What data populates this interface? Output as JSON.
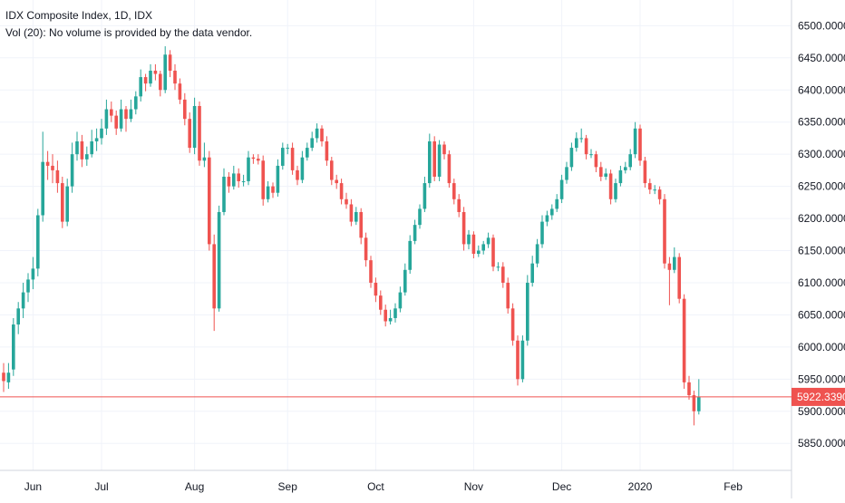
{
  "legend": {
    "title": "IDX Composite Index, 1D, IDX",
    "volume_note": "Vol (20): No volume is provided by the data vendor."
  },
  "colors": {
    "up": "#26a69a",
    "down": "#ef5350",
    "grid": "#f0f3fa",
    "axis_text": "#131722",
    "price_line": "#ef5350",
    "price_label_bg": "#ef5350",
    "price_label_text": "#ffffff",
    "background": "#ffffff"
  },
  "chart_data": {
    "type": "candlestick",
    "y_axis_side": "right",
    "ylim": [
      5808,
      6540
    ],
    "x_range": [
      0,
      154
    ],
    "grid": true,
    "y_ticks": [
      "5850.0000",
      "5900.0000",
      "5950.0000",
      "6000.0000",
      "6050.0000",
      "6100.0000",
      "6150.0000",
      "6200.0000",
      "6250.0000",
      "6300.0000",
      "6350.0000",
      "6400.0000",
      "6450.0000",
      "6500.0000"
    ],
    "x_ticks": [
      {
        "label": "Jun",
        "index": 6
      },
      {
        "label": "Jul",
        "index": 20
      },
      {
        "label": "Aug",
        "index": 39
      },
      {
        "label": "Sep",
        "index": 58
      },
      {
        "label": "Oct",
        "index": 76
      },
      {
        "label": "Nov",
        "index": 96
      },
      {
        "label": "Dec",
        "index": 114
      },
      {
        "label": "2020",
        "index": 130
      },
      {
        "label": "Feb",
        "index": 149
      }
    ],
    "last_price": {
      "value": 5922.339,
      "label": "5922.3390"
    },
    "closes": [
      5947,
      5960,
      6035,
      6060,
      6085,
      6105,
      6122,
      6205,
      6288,
      6282,
      6275,
      6255,
      6195,
      6250,
      6300,
      6320,
      6292,
      6300,
      6320,
      6325,
      6340,
      6370,
      6360,
      6340,
      6370,
      6355,
      6370,
      6390,
      6420,
      6410,
      6430,
      6425,
      6400,
      6455,
      6430,
      6410,
      6385,
      6355,
      6310,
      6375,
      6290,
      6295,
      6160,
      6060,
      6210,
      6265,
      6250,
      6270,
      6258,
      6258,
      6295,
      6293,
      6290,
      6230,
      6250,
      6240,
      6282,
      6310,
      6310,
      6275,
      6260,
      6295,
      6310,
      6325,
      6340,
      6320,
      6290,
      6260,
      6255,
      6230,
      6222,
      6195,
      6210,
      6170,
      6135,
      6100,
      6080,
      6058,
      6040,
      6045,
      6060,
      6085,
      6120,
      6165,
      6190,
      6215,
      6255,
      6320,
      6265,
      6315,
      6300,
      6255,
      6230,
      6210,
      6160,
      6175,
      6145,
      6150,
      6160,
      6170,
      6125,
      6125,
      6100,
      6060,
      6010,
      5950,
      6010,
      6100,
      6130,
      6160,
      6195,
      6205,
      6215,
      6230,
      6260,
      6280,
      6310,
      6325,
      6325,
      6300,
      6300,
      6280,
      6265,
      6270,
      6230,
      6255,
      6275,
      6280,
      6300,
      6340,
      6290,
      6255,
      6245,
      6245,
      6230,
      6130,
      6120,
      6140,
      6075,
      5945,
      5925,
      5900,
      5922
    ],
    "candles": [
      {
        "o": 5960,
        "h": 5975,
        "l": 5930,
        "c": 5947
      },
      {
        "o": 5945,
        "h": 5975,
        "l": 5935,
        "c": 5960
      },
      {
        "o": 5965,
        "h": 6045,
        "l": 5955,
        "c": 6035
      },
      {
        "o": 6035,
        "h": 6070,
        "l": 6020,
        "c": 6060
      },
      {
        "o": 6060,
        "h": 6100,
        "l": 6045,
        "c": 6085
      },
      {
        "o": 6085,
        "h": 6115,
        "l": 6070,
        "c": 6105
      },
      {
        "o": 6105,
        "h": 6140,
        "l": 6090,
        "c": 6122
      },
      {
        "o": 6122,
        "h": 6215,
        "l": 6110,
        "c": 6205
      },
      {
        "o": 6205,
        "h": 6335,
        "l": 6195,
        "c": 6288
      },
      {
        "o": 6288,
        "h": 6305,
        "l": 6260,
        "c": 6282
      },
      {
        "o": 6282,
        "h": 6300,
        "l": 6255,
        "c": 6275
      },
      {
        "o": 6275,
        "h": 6290,
        "l": 6240,
        "c": 6255
      },
      {
        "o": 6255,
        "h": 6265,
        "l": 6185,
        "c": 6195
      },
      {
        "o": 6195,
        "h": 6262,
        "l": 6188,
        "c": 6250
      },
      {
        "o": 6250,
        "h": 6318,
        "l": 6240,
        "c": 6300
      },
      {
        "o": 6300,
        "h": 6335,
        "l": 6290,
        "c": 6320
      },
      {
        "o": 6320,
        "h": 6330,
        "l": 6280,
        "c": 6292
      },
      {
        "o": 6292,
        "h": 6312,
        "l": 6282,
        "c": 6300
      },
      {
        "o": 6300,
        "h": 6338,
        "l": 6295,
        "c": 6320
      },
      {
        "o": 6320,
        "h": 6340,
        "l": 6305,
        "c": 6325
      },
      {
        "o": 6325,
        "h": 6355,
        "l": 6315,
        "c": 6340
      },
      {
        "o": 6340,
        "h": 6385,
        "l": 6330,
        "c": 6370
      },
      {
        "o": 6370,
        "h": 6382,
        "l": 6350,
        "c": 6360
      },
      {
        "o": 6360,
        "h": 6368,
        "l": 6330,
        "c": 6340
      },
      {
        "o": 6340,
        "h": 6385,
        "l": 6335,
        "c": 6370
      },
      {
        "o": 6370,
        "h": 6375,
        "l": 6335,
        "c": 6355
      },
      {
        "o": 6355,
        "h": 6385,
        "l": 6350,
        "c": 6370
      },
      {
        "o": 6370,
        "h": 6398,
        "l": 6362,
        "c": 6390
      },
      {
        "o": 6390,
        "h": 6432,
        "l": 6382,
        "c": 6420
      },
      {
        "o": 6420,
        "h": 6425,
        "l": 6398,
        "c": 6410
      },
      {
        "o": 6410,
        "h": 6440,
        "l": 6405,
        "c": 6430
      },
      {
        "o": 6430,
        "h": 6440,
        "l": 6415,
        "c": 6425
      },
      {
        "o": 6425,
        "h": 6430,
        "l": 6390,
        "c": 6400
      },
      {
        "o": 6400,
        "h": 6468,
        "l": 6395,
        "c": 6455
      },
      {
        "o": 6455,
        "h": 6462,
        "l": 6420,
        "c": 6430
      },
      {
        "o": 6430,
        "h": 6440,
        "l": 6400,
        "c": 6410
      },
      {
        "o": 6410,
        "h": 6418,
        "l": 6378,
        "c": 6385
      },
      {
        "o": 6385,
        "h": 6395,
        "l": 6345,
        "c": 6355
      },
      {
        "o": 6355,
        "h": 6365,
        "l": 6302,
        "c": 6310
      },
      {
        "o": 6310,
        "h": 6388,
        "l": 6300,
        "c": 6375
      },
      {
        "o": 6375,
        "h": 6382,
        "l": 6282,
        "c": 6290
      },
      {
        "o": 6290,
        "h": 6318,
        "l": 6280,
        "c": 6295
      },
      {
        "o": 6295,
        "h": 6305,
        "l": 6150,
        "c": 6160
      },
      {
        "o": 6160,
        "h": 6175,
        "l": 6025,
        "c": 6060
      },
      {
        "o": 6060,
        "h": 6220,
        "l": 6055,
        "c": 6210
      },
      {
        "o": 6210,
        "h": 6278,
        "l": 6205,
        "c": 6265
      },
      {
        "o": 6265,
        "h": 6272,
        "l": 6240,
        "c": 6250
      },
      {
        "o": 6250,
        "h": 6282,
        "l": 6245,
        "c": 6270
      },
      {
        "o": 6270,
        "h": 6278,
        "l": 6248,
        "c": 6258
      },
      {
        "o": 6258,
        "h": 6268,
        "l": 6250,
        "c": 6258
      },
      {
        "o": 6258,
        "h": 6305,
        "l": 6252,
        "c": 6295
      },
      {
        "o": 6295,
        "h": 6300,
        "l": 6285,
        "c": 6293
      },
      {
        "o": 6293,
        "h": 6300,
        "l": 6284,
        "c": 6290
      },
      {
        "o": 6290,
        "h": 6298,
        "l": 6220,
        "c": 6230
      },
      {
        "o": 6230,
        "h": 6258,
        "l": 6225,
        "c": 6250
      },
      {
        "o": 6250,
        "h": 6256,
        "l": 6232,
        "c": 6240
      },
      {
        "o": 6240,
        "h": 6292,
        "l": 6234,
        "c": 6282
      },
      {
        "o": 6282,
        "h": 6318,
        "l": 6276,
        "c": 6310
      },
      {
        "o": 6310,
        "h": 6316,
        "l": 6300,
        "c": 6310
      },
      {
        "o": 6310,
        "h": 6318,
        "l": 6268,
        "c": 6275
      },
      {
        "o": 6275,
        "h": 6282,
        "l": 6252,
        "c": 6260
      },
      {
        "o": 6260,
        "h": 6305,
        "l": 6255,
        "c": 6295
      },
      {
        "o": 6295,
        "h": 6318,
        "l": 6290,
        "c": 6310
      },
      {
        "o": 6310,
        "h": 6335,
        "l": 6305,
        "c": 6325
      },
      {
        "o": 6325,
        "h": 6348,
        "l": 6318,
        "c": 6340
      },
      {
        "o": 6340,
        "h": 6345,
        "l": 6312,
        "c": 6320
      },
      {
        "o": 6320,
        "h": 6328,
        "l": 6282,
        "c": 6290
      },
      {
        "o": 6290,
        "h": 6296,
        "l": 6252,
        "c": 6260
      },
      {
        "o": 6260,
        "h": 6268,
        "l": 6246,
        "c": 6255
      },
      {
        "o": 6255,
        "h": 6262,
        "l": 6222,
        "c": 6230
      },
      {
        "o": 6230,
        "h": 6240,
        "l": 6215,
        "c": 6222
      },
      {
        "o": 6222,
        "h": 6230,
        "l": 6188,
        "c": 6195
      },
      {
        "o": 6195,
        "h": 6218,
        "l": 6190,
        "c": 6210
      },
      {
        "o": 6210,
        "h": 6216,
        "l": 6160,
        "c": 6170
      },
      {
        "o": 6170,
        "h": 6178,
        "l": 6125,
        "c": 6135
      },
      {
        "o": 6135,
        "h": 6142,
        "l": 6092,
        "c": 6100
      },
      {
        "o": 6100,
        "h": 6108,
        "l": 6070,
        "c": 6080
      },
      {
        "o": 6080,
        "h": 6088,
        "l": 6050,
        "c": 6058
      },
      {
        "o": 6058,
        "h": 6066,
        "l": 6032,
        "c": 6040
      },
      {
        "o": 6040,
        "h": 6058,
        "l": 6035,
        "c": 6045
      },
      {
        "o": 6045,
        "h": 6068,
        "l": 6038,
        "c": 6060
      },
      {
        "o": 6060,
        "h": 6094,
        "l": 6054,
        "c": 6085
      },
      {
        "o": 6085,
        "h": 6130,
        "l": 6080,
        "c": 6120
      },
      {
        "o": 6120,
        "h": 6174,
        "l": 6114,
        "c": 6165
      },
      {
        "o": 6165,
        "h": 6198,
        "l": 6160,
        "c": 6190
      },
      {
        "o": 6190,
        "h": 6222,
        "l": 6184,
        "c": 6215
      },
      {
        "o": 6215,
        "h": 6265,
        "l": 6210,
        "c": 6255
      },
      {
        "o": 6255,
        "h": 6332,
        "l": 6248,
        "c": 6320
      },
      {
        "o": 6320,
        "h": 6328,
        "l": 6258,
        "c": 6265
      },
      {
        "o": 6265,
        "h": 6322,
        "l": 6258,
        "c": 6315
      },
      {
        "o": 6315,
        "h": 6320,
        "l": 6292,
        "c": 6300
      },
      {
        "o": 6300,
        "h": 6306,
        "l": 6248,
        "c": 6255
      },
      {
        "o": 6255,
        "h": 6262,
        "l": 6222,
        "c": 6230
      },
      {
        "o": 6230,
        "h": 6238,
        "l": 6202,
        "c": 6210
      },
      {
        "o": 6210,
        "h": 6218,
        "l": 6150,
        "c": 6160
      },
      {
        "o": 6160,
        "h": 6182,
        "l": 6152,
        "c": 6175
      },
      {
        "o": 6175,
        "h": 6180,
        "l": 6138,
        "c": 6145
      },
      {
        "o": 6145,
        "h": 6158,
        "l": 6140,
        "c": 6150
      },
      {
        "o": 6150,
        "h": 6165,
        "l": 6144,
        "c": 6160
      },
      {
        "o": 6160,
        "h": 6178,
        "l": 6154,
        "c": 6170
      },
      {
        "o": 6170,
        "h": 6175,
        "l": 6118,
        "c": 6125
      },
      {
        "o": 6125,
        "h": 6132,
        "l": 6118,
        "c": 6125
      },
      {
        "o": 6125,
        "h": 6132,
        "l": 6092,
        "c": 6100
      },
      {
        "o": 6100,
        "h": 6108,
        "l": 6052,
        "c": 6060
      },
      {
        "o": 6060,
        "h": 6068,
        "l": 6002,
        "c": 6010
      },
      {
        "o": 6010,
        "h": 6018,
        "l": 5940,
        "c": 5950
      },
      {
        "o": 5950,
        "h": 6018,
        "l": 5945,
        "c": 6010
      },
      {
        "o": 6010,
        "h": 6112,
        "l": 6002,
        "c": 6100
      },
      {
        "o": 6100,
        "h": 6142,
        "l": 6094,
        "c": 6130
      },
      {
        "o": 6130,
        "h": 6168,
        "l": 6124,
        "c": 6160
      },
      {
        "o": 6160,
        "h": 6205,
        "l": 6154,
        "c": 6195
      },
      {
        "o": 6195,
        "h": 6212,
        "l": 6188,
        "c": 6205
      },
      {
        "o": 6205,
        "h": 6222,
        "l": 6198,
        "c": 6215
      },
      {
        "o": 6215,
        "h": 6238,
        "l": 6210,
        "c": 6230
      },
      {
        "o": 6230,
        "h": 6268,
        "l": 6224,
        "c": 6260
      },
      {
        "o": 6260,
        "h": 6288,
        "l": 6254,
        "c": 6280
      },
      {
        "o": 6280,
        "h": 6318,
        "l": 6274,
        "c": 6310
      },
      {
        "o": 6310,
        "h": 6334,
        "l": 6304,
        "c": 6325
      },
      {
        "o": 6325,
        "h": 6340,
        "l": 6318,
        "c": 6325
      },
      {
        "o": 6325,
        "h": 6330,
        "l": 6292,
        "c": 6300
      },
      {
        "o": 6300,
        "h": 6308,
        "l": 6294,
        "c": 6300
      },
      {
        "o": 6300,
        "h": 6305,
        "l": 6272,
        "c": 6280
      },
      {
        "o": 6280,
        "h": 6288,
        "l": 6258,
        "c": 6265
      },
      {
        "o": 6265,
        "h": 6278,
        "l": 6260,
        "c": 6270
      },
      {
        "o": 6270,
        "h": 6276,
        "l": 6222,
        "c": 6230
      },
      {
        "o": 6230,
        "h": 6262,
        "l": 6225,
        "c": 6255
      },
      {
        "o": 6255,
        "h": 6282,
        "l": 6250,
        "c": 6275
      },
      {
        "o": 6275,
        "h": 6288,
        "l": 6270,
        "c": 6280
      },
      {
        "o": 6280,
        "h": 6308,
        "l": 6275,
        "c": 6300
      },
      {
        "o": 6300,
        "h": 6350,
        "l": 6294,
        "c": 6340
      },
      {
        "o": 6340,
        "h": 6346,
        "l": 6282,
        "c": 6290
      },
      {
        "o": 6290,
        "h": 6296,
        "l": 6248,
        "c": 6255
      },
      {
        "o": 6255,
        "h": 6262,
        "l": 6238,
        "c": 6245
      },
      {
        "o": 6245,
        "h": 6252,
        "l": 6238,
        "c": 6245
      },
      {
        "o": 6245,
        "h": 6250,
        "l": 6222,
        "c": 6230
      },
      {
        "o": 6230,
        "h": 6238,
        "l": 6122,
        "c": 6130
      },
      {
        "o": 6130,
        "h": 6140,
        "l": 6065,
        "c": 6120
      },
      {
        "o": 6120,
        "h": 6155,
        "l": 6115,
        "c": 6140
      },
      {
        "o": 6140,
        "h": 6146,
        "l": 6068,
        "c": 6075
      },
      {
        "o": 6075,
        "h": 6082,
        "l": 5935,
        "c": 5945
      },
      {
        "o": 5945,
        "h": 5955,
        "l": 5918,
        "c": 5925
      },
      {
        "o": 5925,
        "h": 5932,
        "l": 5878,
        "c": 5900
      },
      {
        "o": 5900,
        "h": 5950,
        "l": 5895,
        "c": 5922
      }
    ]
  }
}
